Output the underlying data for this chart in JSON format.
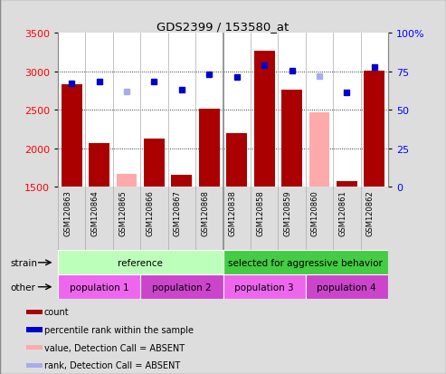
{
  "title": "GDS2399 / 153580_at",
  "samples": [
    "GSM120863",
    "GSM120864",
    "GSM120865",
    "GSM120866",
    "GSM120867",
    "GSM120868",
    "GSM120838",
    "GSM120858",
    "GSM120859",
    "GSM120860",
    "GSM120861",
    "GSM120862"
  ],
  "bar_values": [
    2830,
    2070,
    1670,
    2120,
    1650,
    2510,
    2190,
    3270,
    2760,
    2470,
    1570,
    3010
  ],
  "bar_colors": [
    "#aa0000",
    "#aa0000",
    "#ffaaaa",
    "#aa0000",
    "#aa0000",
    "#aa0000",
    "#aa0000",
    "#aa0000",
    "#aa0000",
    "#ffaaaa",
    "#aa0000",
    "#aa0000"
  ],
  "dot_values": [
    2845,
    2870,
    2740,
    2870,
    2760,
    2960,
    2930,
    3080,
    3010,
    2940,
    2720,
    3050
  ],
  "dot_colors": [
    "#0000cc",
    "#0000cc",
    "#aaaaee",
    "#0000cc",
    "#0000cc",
    "#0000cc",
    "#0000cc",
    "#0000cc",
    "#0000cc",
    "#aaaaee",
    "#0000cc",
    "#0000cc"
  ],
  "ylim_left": [
    1500,
    3500
  ],
  "ylim_right": [
    0,
    100
  ],
  "yticks_left": [
    1500,
    2000,
    2500,
    3000,
    3500
  ],
  "yticks_right": [
    0,
    25,
    50,
    75,
    100
  ],
  "yticklabels_right": [
    "0",
    "25",
    "50",
    "75",
    "100%"
  ],
  "grid_values": [
    2000,
    2500,
    3000
  ],
  "strain_groups": [
    {
      "label": "reference",
      "span": [
        0,
        6
      ],
      "color": "#bbffbb"
    },
    {
      "label": "selected for aggressive behavior",
      "span": [
        6,
        12
      ],
      "color": "#44cc44"
    }
  ],
  "other_groups": [
    {
      "label": "population 1",
      "span": [
        0,
        3
      ],
      "color": "#ee66ee"
    },
    {
      "label": "population 2",
      "span": [
        3,
        6
      ],
      "color": "#cc44cc"
    },
    {
      "label": "population 3",
      "span": [
        6,
        9
      ],
      "color": "#ee66ee"
    },
    {
      "label": "population 4",
      "span": [
        9,
        12
      ],
      "color": "#cc44cc"
    }
  ],
  "legend_items": [
    {
      "color": "#aa0000",
      "label": "count"
    },
    {
      "color": "#0000cc",
      "label": "percentile rank within the sample"
    },
    {
      "color": "#ffaaaa",
      "label": "value, Detection Call = ABSENT"
    },
    {
      "color": "#aaaaee",
      "label": "rank, Detection Call = ABSENT"
    }
  ],
  "background_color": "#dddddd",
  "plot_bg_color": "#ffffff",
  "xtick_bg_color": "#cccccc",
  "strain_label": "strain",
  "other_label": "other"
}
